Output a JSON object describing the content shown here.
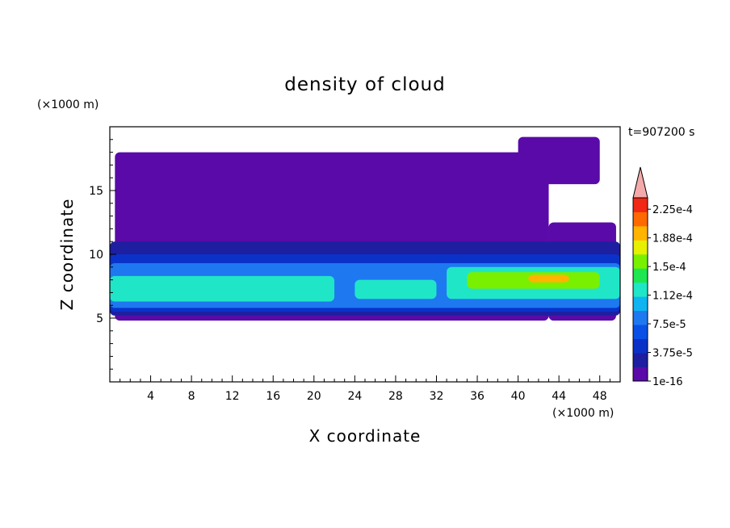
{
  "chart_data": {
    "type": "heatmap",
    "title": "density of cloud",
    "xlabel": "X coordinate",
    "ylabel": "Z coordinate",
    "x_unit_label": "(×1000 m)",
    "y_unit_label": "(×1000 m)",
    "time_label": "t=907200 s",
    "xlim": [
      0,
      50
    ],
    "ylim": [
      0,
      20
    ],
    "x_ticks": [
      "4",
      "8",
      "12",
      "16",
      "20",
      "24",
      "28",
      "32",
      "36",
      "40",
      "44",
      "48"
    ],
    "y_ticks": [
      "5",
      "10",
      "15"
    ],
    "x_tick_values": [
      4,
      8,
      12,
      16,
      20,
      24,
      28,
      32,
      36,
      40,
      44,
      48
    ],
    "y_tick_values": [
      5,
      10,
      15
    ],
    "colorbar": {
      "min": 1e-16,
      "max": 0.00024,
      "levels": [
        1e-16,
        1.875e-05,
        3.75e-05,
        5.625e-05,
        7.5e-05,
        9.375e-05,
        0.0001125,
        0.00013125,
        0.00015,
        0.00016875,
        0.0001875,
        0.00020625,
        0.000225
      ],
      "tick_labels": [
        "1e-16",
        "3.75e-5",
        "7.5e-5",
        "1.12e-4",
        "1.5e-4",
        "1.88e-4",
        "2.25e-4"
      ],
      "tick_values": [
        1e-16,
        3.75e-05,
        7.5e-05,
        0.0001125,
        0.00015,
        0.0001875,
        0.000225
      ],
      "colors": [
        "#5a0aa8",
        "#1e1ea0",
        "#0a32c8",
        "#0a50e6",
        "#1e78f0",
        "#10b4f0",
        "#20e6c8",
        "#1ee650",
        "#78f000",
        "#e6f000",
        "#ffb400",
        "#ff6a00",
        "#f02814"
      ],
      "overflow_color": "#f4aaaa"
    },
    "layers": [
      {
        "level": "1e-16",
        "zones": [
          {
            "x": [
              0.5,
              43
            ],
            "z": [
              4.8,
              18.0
            ]
          },
          {
            "x": [
              43,
              49.6
            ],
            "z": [
              4.8,
              12.5
            ]
          },
          {
            "x": [
              40,
              48
            ],
            "z": [
              15.5,
              19.2
            ]
          }
        ]
      },
      {
        "level": "1.88e-5",
        "zones": [
          {
            "x": [
              0,
              50
            ],
            "z": [
              5.2,
              11.0
            ]
          }
        ]
      },
      {
        "level": "3.75e-5",
        "zones": [
          {
            "x": [
              0,
              50
            ],
            "z": [
              5.5,
              10.0
            ]
          }
        ]
      },
      {
        "level": "7.5e-5",
        "zones": [
          {
            "x": [
              0,
              50
            ],
            "z": [
              5.8,
              9.3
            ]
          }
        ]
      },
      {
        "level": "1.12e-4",
        "zones": [
          {
            "x": [
              0,
              22
            ],
            "z": [
              6.3,
              8.3
            ]
          },
          {
            "x": [
              24,
              32
            ],
            "z": [
              6.5,
              8.0
            ]
          },
          {
            "x": [
              33,
              50
            ],
            "z": [
              6.5,
              9.0
            ]
          }
        ]
      },
      {
        "level": "1.5e-4",
        "zones": [
          {
            "x": [
              35,
              48
            ],
            "z": [
              7.3,
              8.6
            ]
          }
        ]
      },
      {
        "level": "1.88e-4",
        "zones": [
          {
            "x": [
              41,
              45
            ],
            "z": [
              7.8,
              8.4
            ]
          }
        ]
      }
    ],
    "grid": false
  }
}
